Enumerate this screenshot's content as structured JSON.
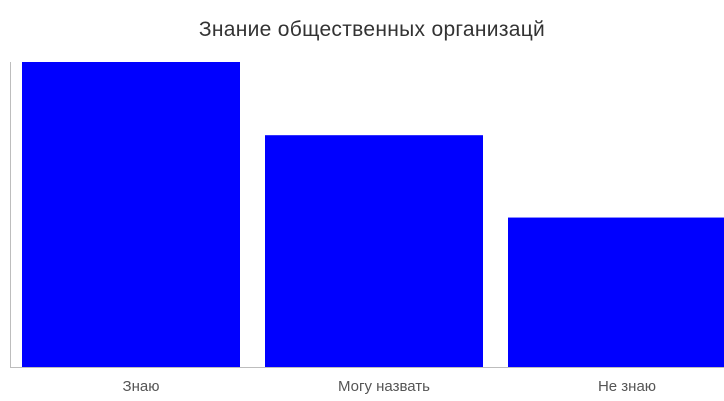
{
  "chart_data": {
    "type": "bar",
    "title": "Знание общественных организацй",
    "xlabel": "",
    "ylabel": "",
    "categories": [
      "Знаю",
      "Могу назвать",
      "Не знаю"
    ],
    "values": [
      100,
      76,
      49
    ],
    "ylim": [
      0,
      100
    ],
    "grid": false,
    "legend": "none",
    "bar_color": "#0000ff",
    "axis_color": "#bdbdbd"
  }
}
